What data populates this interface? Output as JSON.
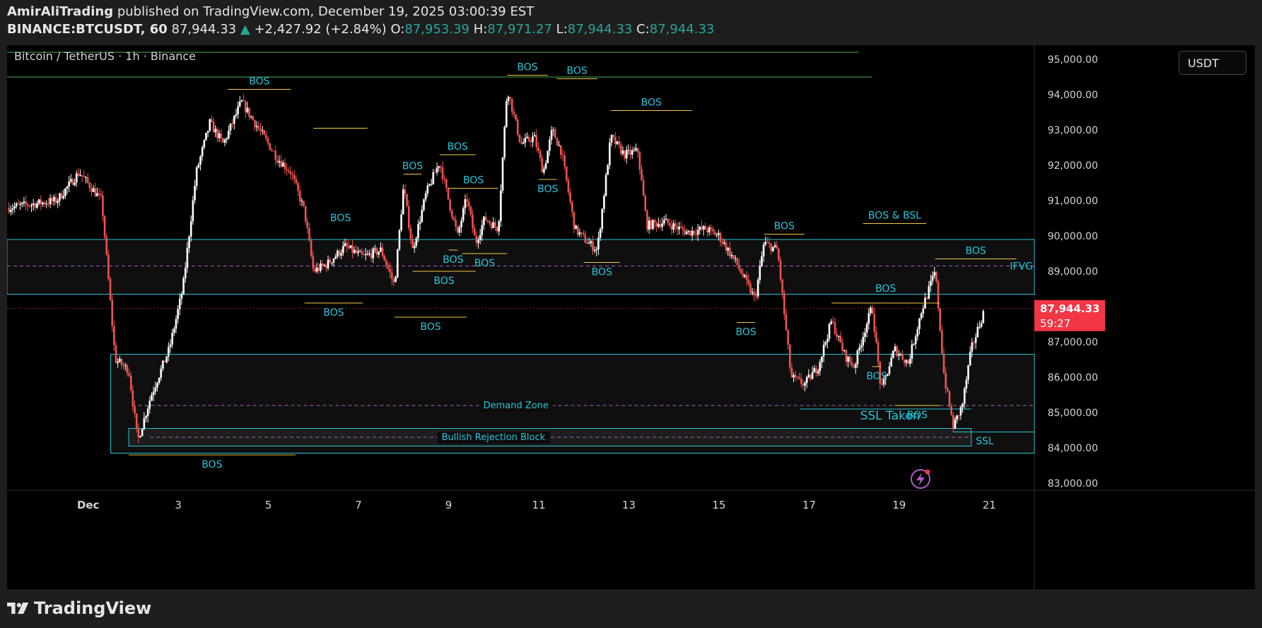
{
  "header": {
    "author": "AmirAliTrading",
    "published": "published on TradingView.com, December 19, 2025 03:00:39 EST",
    "symbol": "BINANCE:BTCUSDT, 60",
    "last": "87,944.33",
    "change": "+2,427.92 (+2.84%)",
    "o_label": "O:",
    "o": "87,953.39",
    "h_label": "H:",
    "h": "87,971.27",
    "l_label": "L:",
    "l": "87,944.33",
    "c_label": "C:",
    "c": "87,944.33"
  },
  "legend_title": "Bitcoin / TetherUS · 1h · Binance",
  "currency_button": "USDT",
  "footer_brand": "TradingView",
  "price_tag": {
    "price": "87,944.33",
    "countdown": "59:27"
  },
  "colors": {
    "up": "#ffffff",
    "down": "#ef5350",
    "zone": "#26c6da",
    "bos_line": "#f5c842",
    "bos_text": "#26c6da",
    "green_line": "#4caf50",
    "tag": "#f23645"
  },
  "chart_data": {
    "type": "candlestick",
    "title": "Bitcoin / TetherUS · 1h · Binance",
    "x_ticks": [
      "Dec",
      "3",
      "5",
      "7",
      "9",
      "11",
      "13",
      "15",
      "17",
      "19",
      "21"
    ],
    "x_tick_days": [
      1,
      3,
      5,
      7,
      9,
      11,
      13,
      15,
      17,
      19,
      21
    ],
    "x_range_days": [
      -0.8,
      22
    ],
    "y_ticks": [
      83000,
      84000,
      85000,
      86000,
      87000,
      88000,
      89000,
      90000,
      91000,
      92000,
      93000,
      94000,
      95000
    ],
    "y_tick_labels": [
      "83,000.00",
      "84,000.00",
      "85,000.00",
      "86,000.00",
      "87,000.00",
      "",
      "89,000.00",
      "90,000.00",
      "91,000.00",
      "92,000.00",
      "93,000.00",
      "94,000.00",
      "95,000.00"
    ],
    "y_range": [
      82800,
      95400
    ],
    "price_path": [
      [
        -0.8,
        90800
      ],
      [
        0.3,
        91000
      ],
      [
        0.8,
        91800
      ],
      [
        1.3,
        91000
      ],
      [
        1.4,
        89500
      ],
      [
        1.6,
        86500
      ],
      [
        1.9,
        86200
      ],
      [
        2.1,
        84200
      ],
      [
        2.4,
        85500
      ],
      [
        2.8,
        86800
      ],
      [
        3.1,
        88500
      ],
      [
        3.4,
        91800
      ],
      [
        3.7,
        93200
      ],
      [
        4.0,
        92600
      ],
      [
        4.4,
        93800
      ],
      [
        4.8,
        93000
      ],
      [
        5.2,
        92200
      ],
      [
        5.5,
        91800
      ],
      [
        5.8,
        90700
      ],
      [
        6.0,
        89000
      ],
      [
        6.3,
        89200
      ],
      [
        6.7,
        89700
      ],
      [
        7.1,
        89400
      ],
      [
        7.5,
        89600
      ],
      [
        7.8,
        88600
      ],
      [
        8.0,
        91400
      ],
      [
        8.2,
        89600
      ],
      [
        8.5,
        91200
      ],
      [
        8.8,
        92100
      ],
      [
        9.0,
        91000
      ],
      [
        9.2,
        90000
      ],
      [
        9.4,
        91100
      ],
      [
        9.6,
        89800
      ],
      [
        9.8,
        90500
      ],
      [
        10.1,
        90200
      ],
      [
        10.3,
        94200
      ],
      [
        10.6,
        92600
      ],
      [
        10.9,
        92800
      ],
      [
        11.1,
        91800
      ],
      [
        11.3,
        93000
      ],
      [
        11.5,
        92400
      ],
      [
        11.8,
        90200
      ],
      [
        12.1,
        89800
      ],
      [
        12.3,
        89600
      ],
      [
        12.6,
        92800
      ],
      [
        12.9,
        92300
      ],
      [
        13.2,
        92400
      ],
      [
        13.4,
        90300
      ],
      [
        13.8,
        90400
      ],
      [
        14.3,
        90100
      ],
      [
        14.7,
        90200
      ],
      [
        15.0,
        90000
      ],
      [
        15.4,
        89200
      ],
      [
        15.8,
        88200
      ],
      [
        16.0,
        89800
      ],
      [
        16.3,
        89600
      ],
      [
        16.6,
        86000
      ],
      [
        16.9,
        85800
      ],
      [
        17.2,
        86300
      ],
      [
        17.5,
        87600
      ],
      [
        17.8,
        86600
      ],
      [
        18.0,
        86300
      ],
      [
        18.2,
        87200
      ],
      [
        18.4,
        88000
      ],
      [
        18.6,
        85600
      ],
      [
        18.9,
        86800
      ],
      [
        19.2,
        86400
      ],
      [
        19.5,
        87900
      ],
      [
        19.8,
        89000
      ],
      [
        20.0,
        86000
      ],
      [
        20.2,
        84600
      ],
      [
        20.4,
        85200
      ],
      [
        20.6,
        86800
      ],
      [
        20.9,
        87944
      ]
    ],
    "zones": [
      {
        "from_day": -0.8,
        "to_day": 22,
        "top": 89900,
        "bottom": 88350,
        "label": ""
      },
      {
        "from_day": 1.5,
        "to_day": 22,
        "top": 86650,
        "bottom": 83850,
        "label": "Demand Zone",
        "mid": 85200
      },
      {
        "from_day": 1.9,
        "to_day": 20.6,
        "top": 84550,
        "bottom": 84050,
        "label": "Bullish Rejection Block",
        "mid": 84300
      }
    ],
    "ifvg": {
      "label": "IFVG",
      "price": 89150
    },
    "green_lines": [
      {
        "price": 95200,
        "from_day": -0.8,
        "to_day": 18.1
      },
      {
        "price": 94500,
        "from_day": -0.8,
        "to_day": 18.4
      }
    ],
    "bos": [
      {
        "label": "BOS",
        "from_day": 4.1,
        "to_day": 5.5,
        "price": 94150,
        "text_pos": "above"
      },
      {
        "label": "BOS",
        "from_day": 6.0,
        "to_day": 7.2,
        "price": 93050,
        "text_pos": "above",
        "text_price": 90300
      },
      {
        "label": "BOS",
        "from_day": 5.8,
        "to_day": 7.1,
        "price": 88100,
        "text_pos": "below"
      },
      {
        "label": "BOS",
        "from_day": 7.8,
        "to_day": 9.4,
        "price": 87700,
        "text_pos": "below"
      },
      {
        "label": "BOS",
        "from_day": 8.0,
        "to_day": 8.4,
        "price": 91750,
        "text_pos": "above"
      },
      {
        "label": "BOS",
        "from_day": 8.2,
        "to_day": 9.6,
        "price": 89000,
        "text_pos": "below"
      },
      {
        "label": "BOS",
        "from_day": 8.8,
        "to_day": 9.6,
        "price": 92300,
        "text_pos": "above"
      },
      {
        "label": "BOS",
        "from_day": 9.0,
        "to_day": 9.2,
        "price": 89600,
        "text_pos": "below"
      },
      {
        "label": "BOS",
        "from_day": 9.0,
        "to_day": 10.1,
        "price": 91350,
        "text_pos": "above"
      },
      {
        "label": "BOS",
        "from_day": 9.3,
        "to_day": 10.3,
        "price": 89500,
        "text_pos": "below"
      },
      {
        "label": "BOS",
        "from_day": 10.3,
        "to_day": 11.2,
        "price": 94550,
        "text_pos": "above"
      },
      {
        "label": "BOS",
        "from_day": 11.4,
        "to_day": 12.3,
        "price": 94450,
        "text_pos": "above"
      },
      {
        "label": "BOS",
        "from_day": 11.0,
        "to_day": 11.4,
        "price": 91600,
        "text_pos": "below"
      },
      {
        "label": "BOS",
        "from_day": 12.0,
        "to_day": 12.8,
        "price": 89250,
        "text_pos": "below"
      },
      {
        "label": "BOS",
        "from_day": 12.6,
        "to_day": 14.4,
        "price": 93550,
        "text_pos": "above"
      },
      {
        "label": "BOS",
        "from_day": 15.4,
        "to_day": 15.8,
        "price": 87550,
        "text_pos": "below"
      },
      {
        "label": "BOS",
        "from_day": 16.0,
        "to_day": 16.9,
        "price": 90050,
        "text_pos": "above"
      },
      {
        "label": "BOS & BSL",
        "from_day": 18.2,
        "to_day": 19.6,
        "price": 90350,
        "text_pos": "above"
      },
      {
        "label": "BOS",
        "from_day": 17.5,
        "to_day": 19.9,
        "price": 88100,
        "text_pos": "above",
        "text_price": 88300
      },
      {
        "label": "BOS",
        "from_day": 18.4,
        "to_day": 18.6,
        "price": 86300,
        "text_pos": "below"
      },
      {
        "label": "BOS",
        "from_day": 18.9,
        "to_day": 19.9,
        "price": 85200,
        "text_pos": "below"
      },
      {
        "label": "BOS",
        "from_day": 19.8,
        "to_day": 21.6,
        "price": 89350,
        "text_pos": "above"
      },
      {
        "label": "BOS",
        "from_day": 1.9,
        "to_day": 5.6,
        "price": 83800,
        "text_pos": "below"
      }
    ],
    "ssl": {
      "label": "SSL",
      "from_day": 20.2,
      "to_day": 22.0,
      "price": 84450
    },
    "ssl_taken": {
      "label": "SSL Taken",
      "day": 18.8,
      "price": 84800
    },
    "demand_range_line": {
      "from_day": 16.8,
      "to_day": 20.6,
      "price": 85100
    },
    "current_price": 87944.33
  }
}
